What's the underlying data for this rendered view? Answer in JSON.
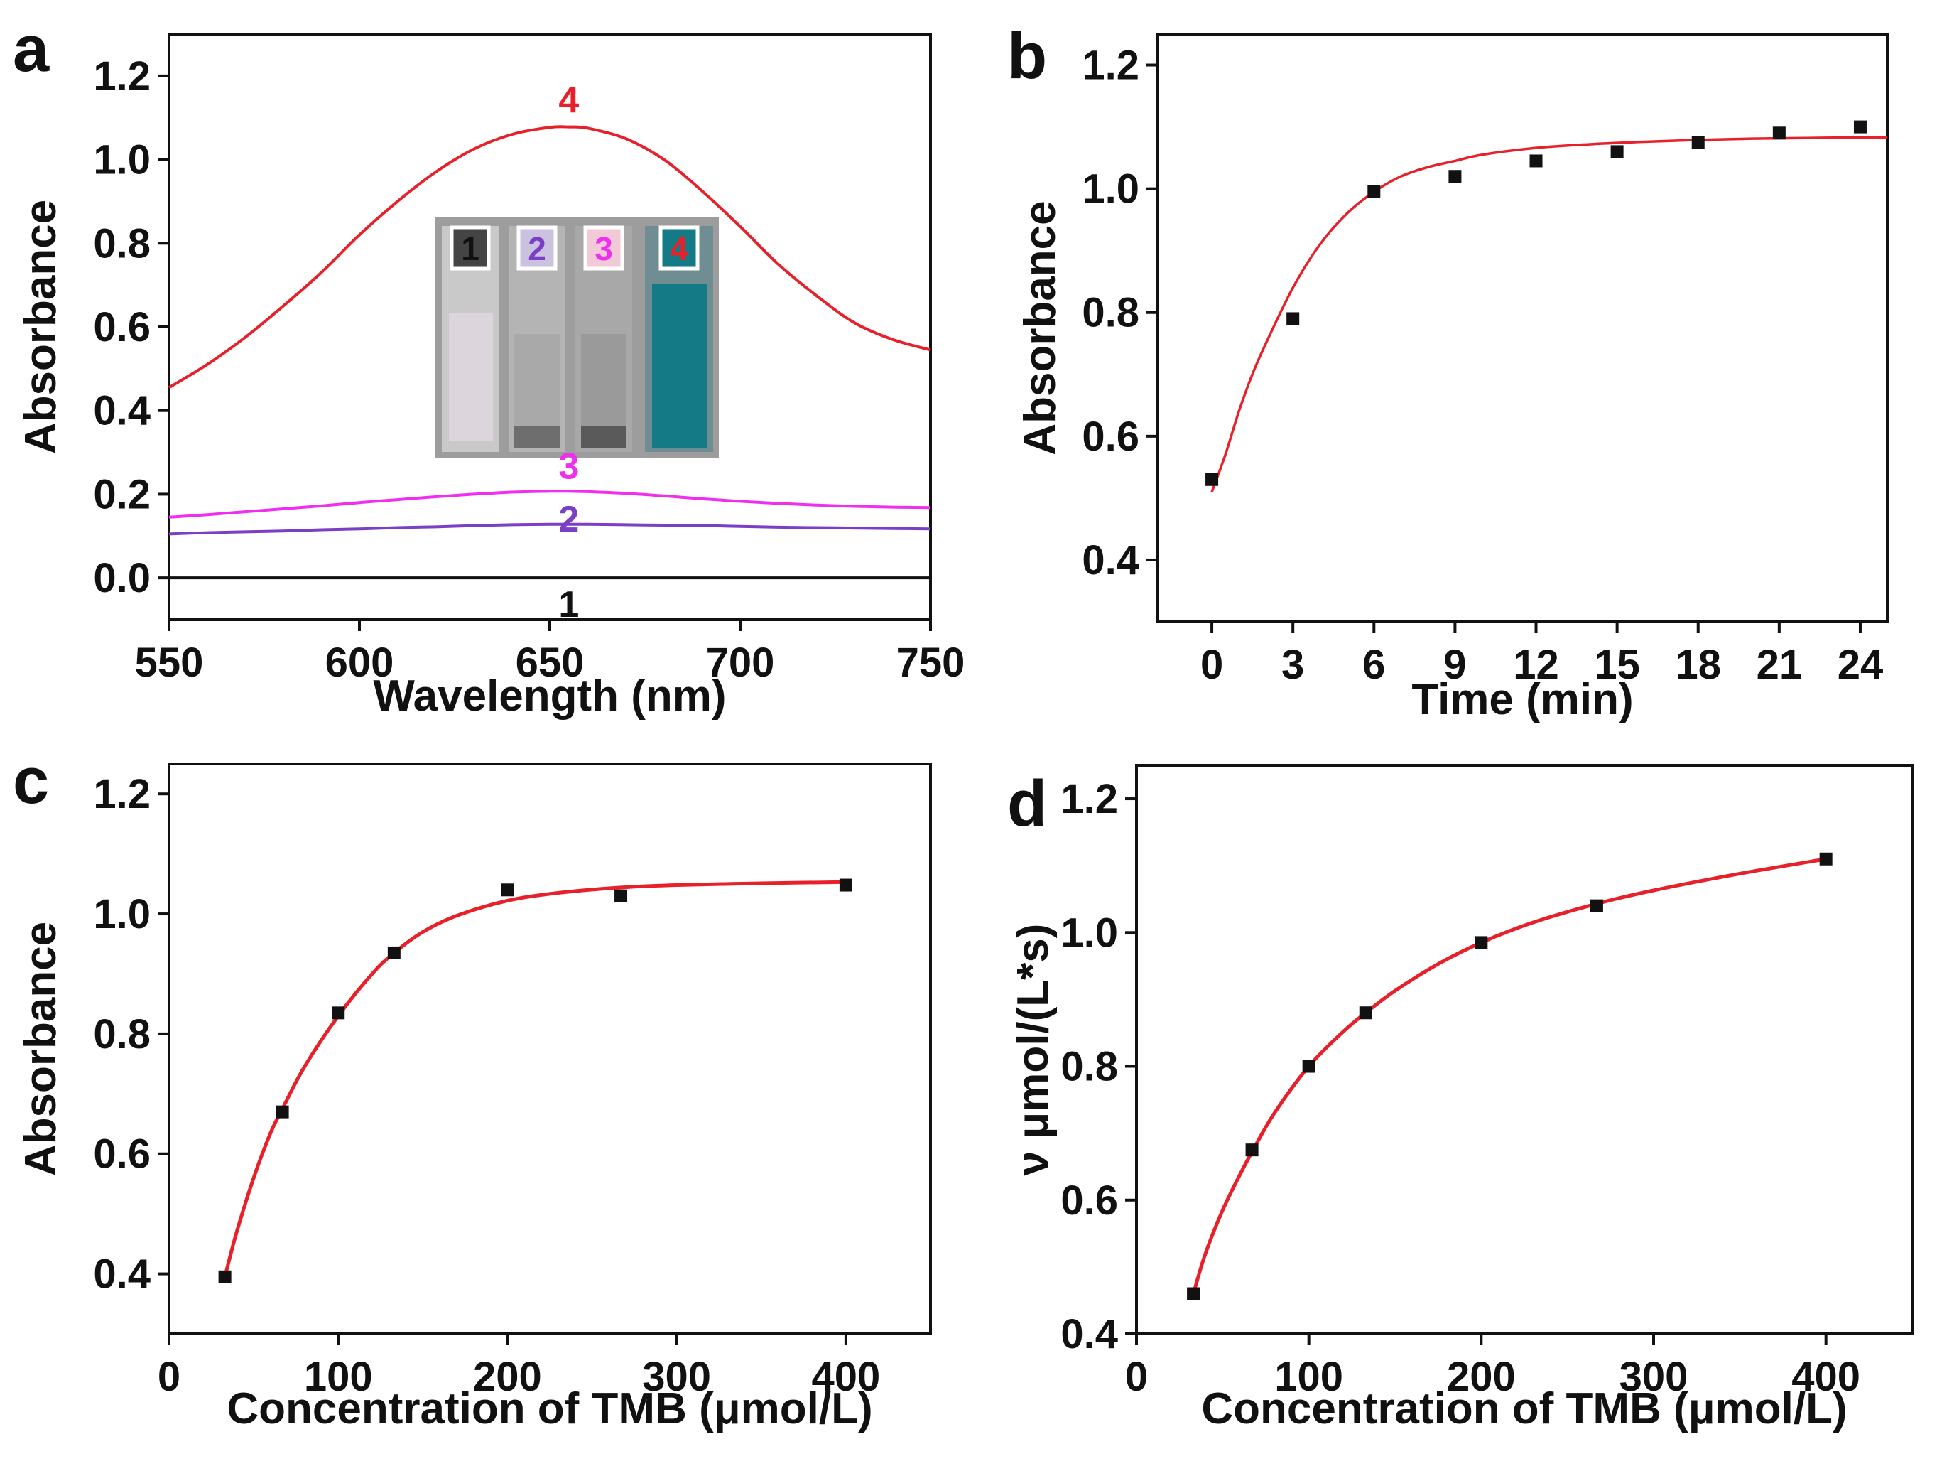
{
  "colors": {
    "fit": "#e8202a",
    "point": "#111111",
    "curve1": "#111111",
    "curve2": "#7a3fc4",
    "curve3": "#f02ef0",
    "curve4": "#e8202a",
    "cuvette_blue": "#137a86"
  },
  "chart_data": [
    {
      "panel": "a",
      "type": "line",
      "xlabel": "Wavelength (nm)",
      "ylabel": "Absorbance",
      "xlim": [
        550,
        750
      ],
      "ylim": [
        -0.1,
        1.3
      ],
      "xticks": [
        "550",
        "600",
        "650",
        "700",
        "750"
      ],
      "yticks": [
        "0.0",
        "0.2",
        "0.4",
        "0.6",
        "0.8",
        "1.0",
        "1.2"
      ],
      "x": [
        550,
        560,
        570,
        580,
        590,
        600,
        610,
        620,
        630,
        640,
        650,
        655,
        660,
        670,
        680,
        690,
        700,
        710,
        720,
        730,
        740,
        750
      ],
      "series": [
        {
          "name": "1",
          "values": [
            0.0,
            0.0,
            0.0,
            0.0,
            0.0,
            0.0,
            0.0,
            0.0,
            0.0,
            0.0,
            0.0,
            0.0,
            0.0,
            0.0,
            0.0,
            0.0,
            0.0,
            0.0,
            0.0,
            0.0,
            0.0,
            0.0
          ]
        },
        {
          "name": "2",
          "values": [
            0.105,
            0.108,
            0.11,
            0.112,
            0.115,
            0.117,
            0.12,
            0.122,
            0.125,
            0.127,
            0.128,
            0.128,
            0.128,
            0.127,
            0.126,
            0.125,
            0.123,
            0.121,
            0.12,
            0.119,
            0.118,
            0.117
          ]
        },
        {
          "name": "3",
          "values": [
            0.145,
            0.151,
            0.158,
            0.165,
            0.172,
            0.18,
            0.187,
            0.194,
            0.2,
            0.205,
            0.207,
            0.207,
            0.206,
            0.202,
            0.196,
            0.189,
            0.183,
            0.178,
            0.174,
            0.171,
            0.169,
            0.168
          ]
        },
        {
          "name": "4",
          "values": [
            0.455,
            0.51,
            0.575,
            0.65,
            0.73,
            0.82,
            0.9,
            0.97,
            1.025,
            1.06,
            1.077,
            1.078,
            1.075,
            1.05,
            1.0,
            0.925,
            0.84,
            0.75,
            0.675,
            0.61,
            0.57,
            0.545
          ]
        }
      ],
      "curve_labels": [
        "1",
        "2",
        "3",
        "4"
      ],
      "inset": {
        "description": "cuvette photo",
        "labels": [
          "1",
          "2",
          "3",
          "4"
        ]
      }
    },
    {
      "panel": "b",
      "type": "scatter",
      "xlabel": "Time (min)",
      "ylabel": "Absorbance",
      "xlim": [
        -2,
        25
      ],
      "ylim": [
        0.3,
        1.25
      ],
      "xticks": [
        "0",
        "3",
        "6",
        "9",
        "12",
        "15",
        "18",
        "21",
        "24"
      ],
      "yticks": [
        "0.4",
        "0.6",
        "0.8",
        "1.0",
        "1.2"
      ],
      "points": {
        "x": [
          0,
          3,
          6,
          9,
          12,
          15,
          18,
          21,
          24
        ],
        "y": [
          0.53,
          0.79,
          0.995,
          1.02,
          1.045,
          1.06,
          1.075,
          1.09,
          1.1
        ]
      },
      "fit": {
        "x": [
          0,
          0.5,
          1,
          1.5,
          2,
          3,
          4,
          5,
          6,
          7,
          8,
          9,
          10,
          12,
          14,
          16,
          18,
          20,
          22,
          24,
          25
        ],
        "y": [
          0.51,
          0.57,
          0.64,
          0.7,
          0.75,
          0.84,
          0.91,
          0.96,
          0.995,
          1.02,
          1.035,
          1.045,
          1.055,
          1.066,
          1.072,
          1.076,
          1.079,
          1.081,
          1.082,
          1.083,
          1.083
        ]
      }
    },
    {
      "panel": "c",
      "type": "scatter",
      "xlabel": "Concentration of TMB (μmol/L)",
      "ylabel": "Absorbance",
      "xlim": [
        0,
        450
      ],
      "ylim": [
        0.3,
        1.25
      ],
      "xticks": [
        "0",
        "100",
        "200",
        "300",
        "400"
      ],
      "yticks": [
        "0.4",
        "0.6",
        "0.8",
        "1.0",
        "1.2"
      ],
      "points": {
        "x": [
          33,
          67,
          100,
          133,
          200,
          267,
          400
        ],
        "y": [
          0.395,
          0.67,
          0.835,
          0.935,
          1.04,
          1.03,
          1.048
        ]
      },
      "fit": {
        "x": [
          33,
          40,
          50,
          60,
          67,
          80,
          100,
          120,
          133,
          150,
          170,
          200,
          230,
          267,
          300,
          350,
          400
        ],
        "y": [
          0.395,
          0.47,
          0.56,
          0.635,
          0.675,
          0.745,
          0.83,
          0.9,
          0.935,
          0.97,
          0.997,
          1.022,
          1.035,
          1.044,
          1.048,
          1.051,
          1.053
        ]
      }
    },
    {
      "panel": "d",
      "type": "scatter",
      "xlabel": "Concentration of TMB (μmol/L)",
      "ylabel": "ν μmol/(L*s)",
      "xlim": [
        0,
        450
      ],
      "ylim": [
        0.4,
        1.25
      ],
      "xticks": [
        "0",
        "100",
        "200",
        "300",
        "400"
      ],
      "yticks": [
        "0.4",
        "0.6",
        "0.8",
        "1.0",
        "1.2"
      ],
      "points": {
        "x": [
          33,
          67,
          100,
          133,
          200,
          267,
          400
        ],
        "y": [
          0.46,
          0.675,
          0.8,
          0.88,
          0.985,
          1.04,
          1.11
        ]
      },
      "fit": {
        "x": [
          33,
          40,
          50,
          60,
          67,
          80,
          100,
          120,
          133,
          150,
          175,
          200,
          230,
          267,
          300,
          350,
          400
        ],
        "y": [
          0.46,
          0.52,
          0.585,
          0.638,
          0.672,
          0.73,
          0.8,
          0.852,
          0.88,
          0.913,
          0.953,
          0.985,
          1.015,
          1.043,
          1.063,
          1.088,
          1.11
        ]
      }
    }
  ]
}
